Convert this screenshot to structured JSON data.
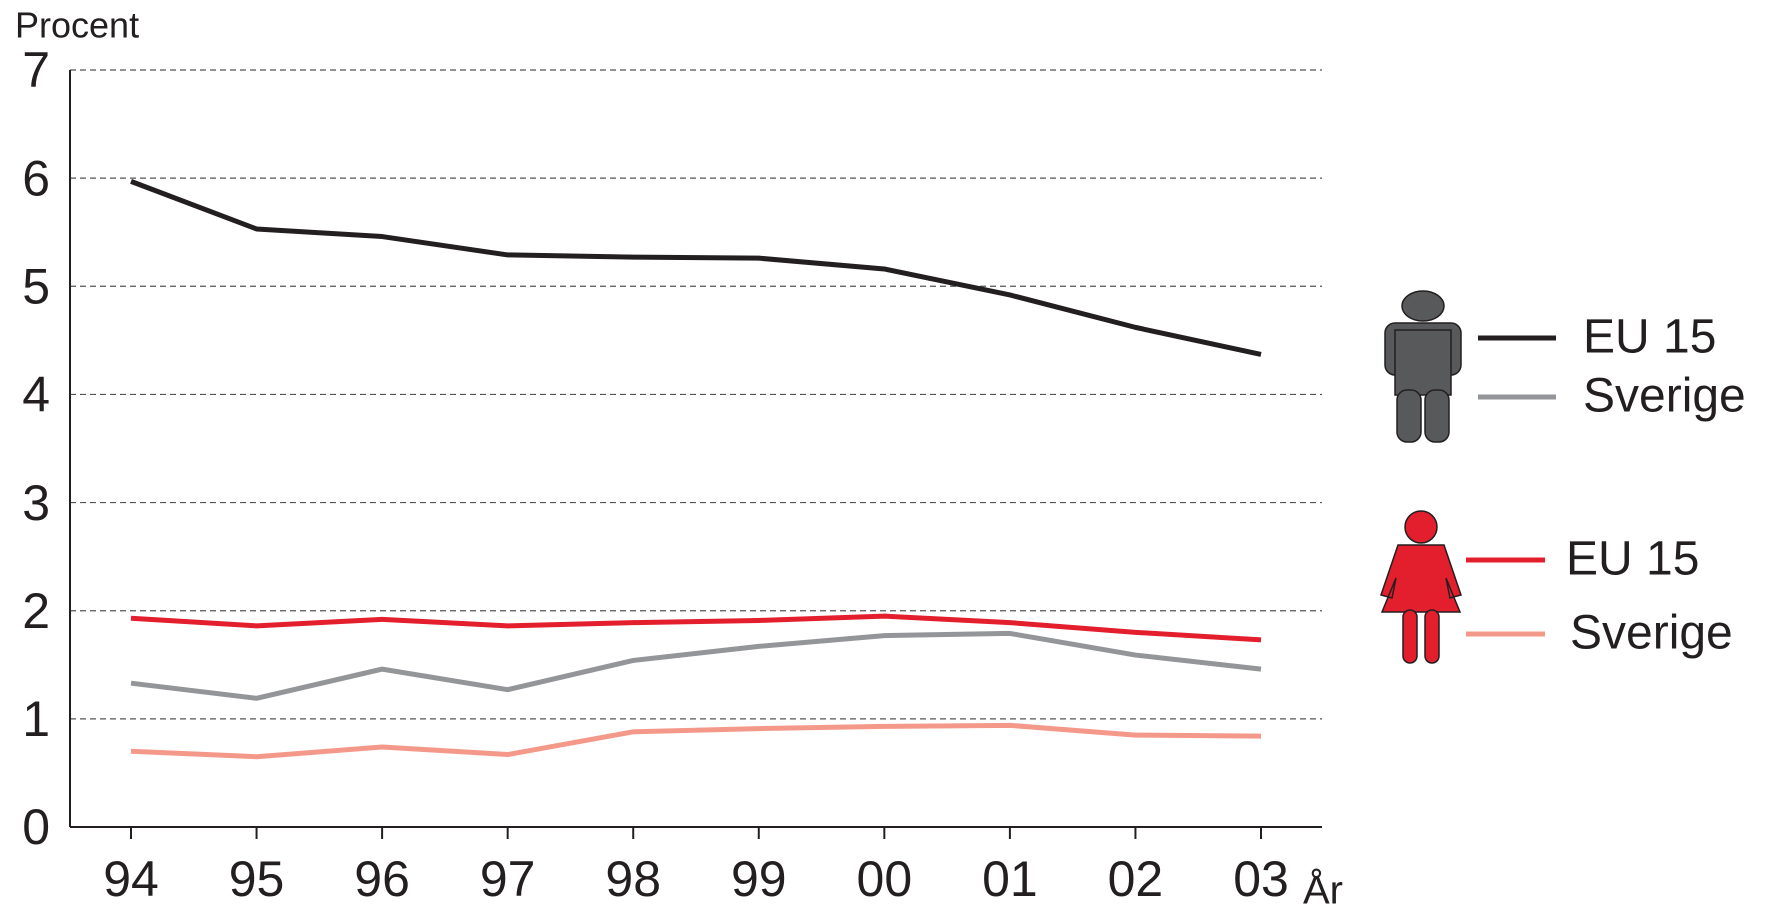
{
  "chart_data": {
    "type": "line",
    "y_label": "Procent",
    "x_label": "År",
    "categories": [
      "94",
      "95",
      "96",
      "97",
      "98",
      "99",
      "00",
      "01",
      "02",
      "03"
    ],
    "series": [
      {
        "name": "EU 15",
        "color": "#231f20",
        "values": [
          5.97,
          5.53,
          5.46,
          5.29,
          5.27,
          5.26,
          5.16,
          4.92,
          4.62,
          4.37
        ]
      },
      {
        "name": "Sverige",
        "color": "#939598",
        "values": [
          1.33,
          1.19,
          1.46,
          1.27,
          1.54,
          1.67,
          1.77,
          1.79,
          1.59,
          1.46
        ]
      },
      {
        "name": "EU 15",
        "color": "#e31e2d",
        "values": [
          1.93,
          1.86,
          1.92,
          1.86,
          1.89,
          1.91,
          1.95,
          1.89,
          1.8,
          1.73
        ]
      },
      {
        "name": "Sverige",
        "color": "#f4998a",
        "values": [
          0.7,
          0.65,
          0.74,
          0.67,
          0.88,
          0.91,
          0.93,
          0.94,
          0.85,
          0.84
        ]
      }
    ],
    "ylim": [
      0,
      7
    ],
    "yticks": [
      0,
      1,
      2,
      3,
      4,
      5,
      6,
      7
    ],
    "grid": true
  }
}
